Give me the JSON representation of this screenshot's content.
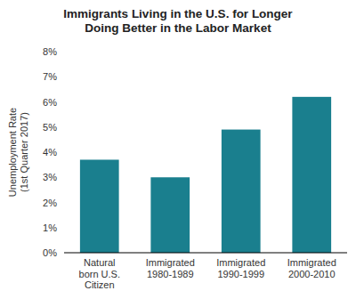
{
  "chart_data": {
    "type": "bar",
    "title": "Immigrants Living in the U.S. for Longer\nDoing Better in the Labor Market",
    "categories": [
      "Natural\nborn U.S.\nCitizen",
      "Immigrated\n1980-1989",
      "Immigrated\n1990-1999",
      "Immigrated\n2000-2010"
    ],
    "values": [
      3.7,
      3.0,
      4.9,
      6.2
    ],
    "color": "#1a7f8e",
    "ylabel": "Unemployment Rate\n(1st Quarter 2017)",
    "ylim": [
      0,
      8
    ],
    "yticks": [
      {
        "value": 0,
        "label": "0%"
      },
      {
        "value": 1,
        "label": "1%"
      },
      {
        "value": 2,
        "label": "2%"
      },
      {
        "value": 3,
        "label": "3%"
      },
      {
        "value": 4,
        "label": "4%"
      },
      {
        "value": 5,
        "label": "5%"
      },
      {
        "value": 6,
        "label": "6%"
      },
      {
        "value": 7,
        "label": "7%"
      },
      {
        "value": 8,
        "label": "8%"
      }
    ],
    "grid": false
  }
}
